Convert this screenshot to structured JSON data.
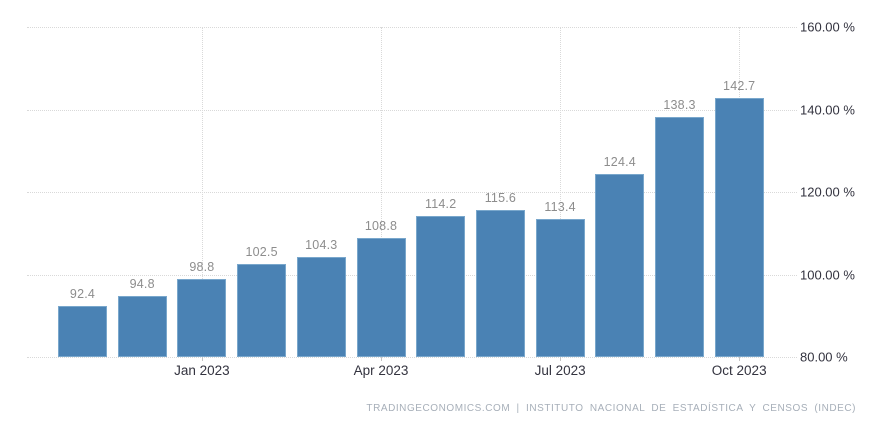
{
  "chart_data": {
    "type": "bar",
    "values": [
      92.4,
      94.8,
      98.8,
      102.5,
      104.3,
      108.8,
      114.2,
      115.6,
      113.4,
      124.4,
      138.3,
      142.7
    ],
    "value_labels": [
      "92.4",
      "94.8",
      "98.8",
      "102.5",
      "104.3",
      "108.8",
      "114.2",
      "115.6",
      "113.4",
      "124.4",
      "138.3",
      "142.7"
    ],
    "x_ticks": [
      {
        "bar_index": 2,
        "label": "Jan 2023"
      },
      {
        "bar_index": 5,
        "label": "Apr 2023"
      },
      {
        "bar_index": 8,
        "label": "Jul 2023"
      },
      {
        "bar_index": 11,
        "label": "Oct 2023"
      }
    ],
    "y_ticks": [
      {
        "value": 160,
        "label": "160.00 %"
      },
      {
        "value": 140,
        "label": "140.00 %"
      },
      {
        "value": 120,
        "label": "120.00 %"
      },
      {
        "value": 100,
        "label": "100.00 %"
      },
      {
        "value": 80,
        "label": "80.00 %"
      }
    ],
    "ylim": [
      80,
      160
    ],
    "grid": "dotted horizontal and vertical at ticks",
    "legend_position": "none",
    "colors": {
      "bar_fill": "#4a82b4",
      "bar_rim": "#79a7cc",
      "grid": "#d9d9d9",
      "value_label": "#8d8d8d",
      "axis_label": "#33333f",
      "attribution": "#a7afb9"
    }
  },
  "attribution": {
    "full": "TRADINGECONOMICS.COM  |  INSTITUTO NACIONAL DE ESTADÍSTICA Y CENSOS (INDEC)"
  }
}
